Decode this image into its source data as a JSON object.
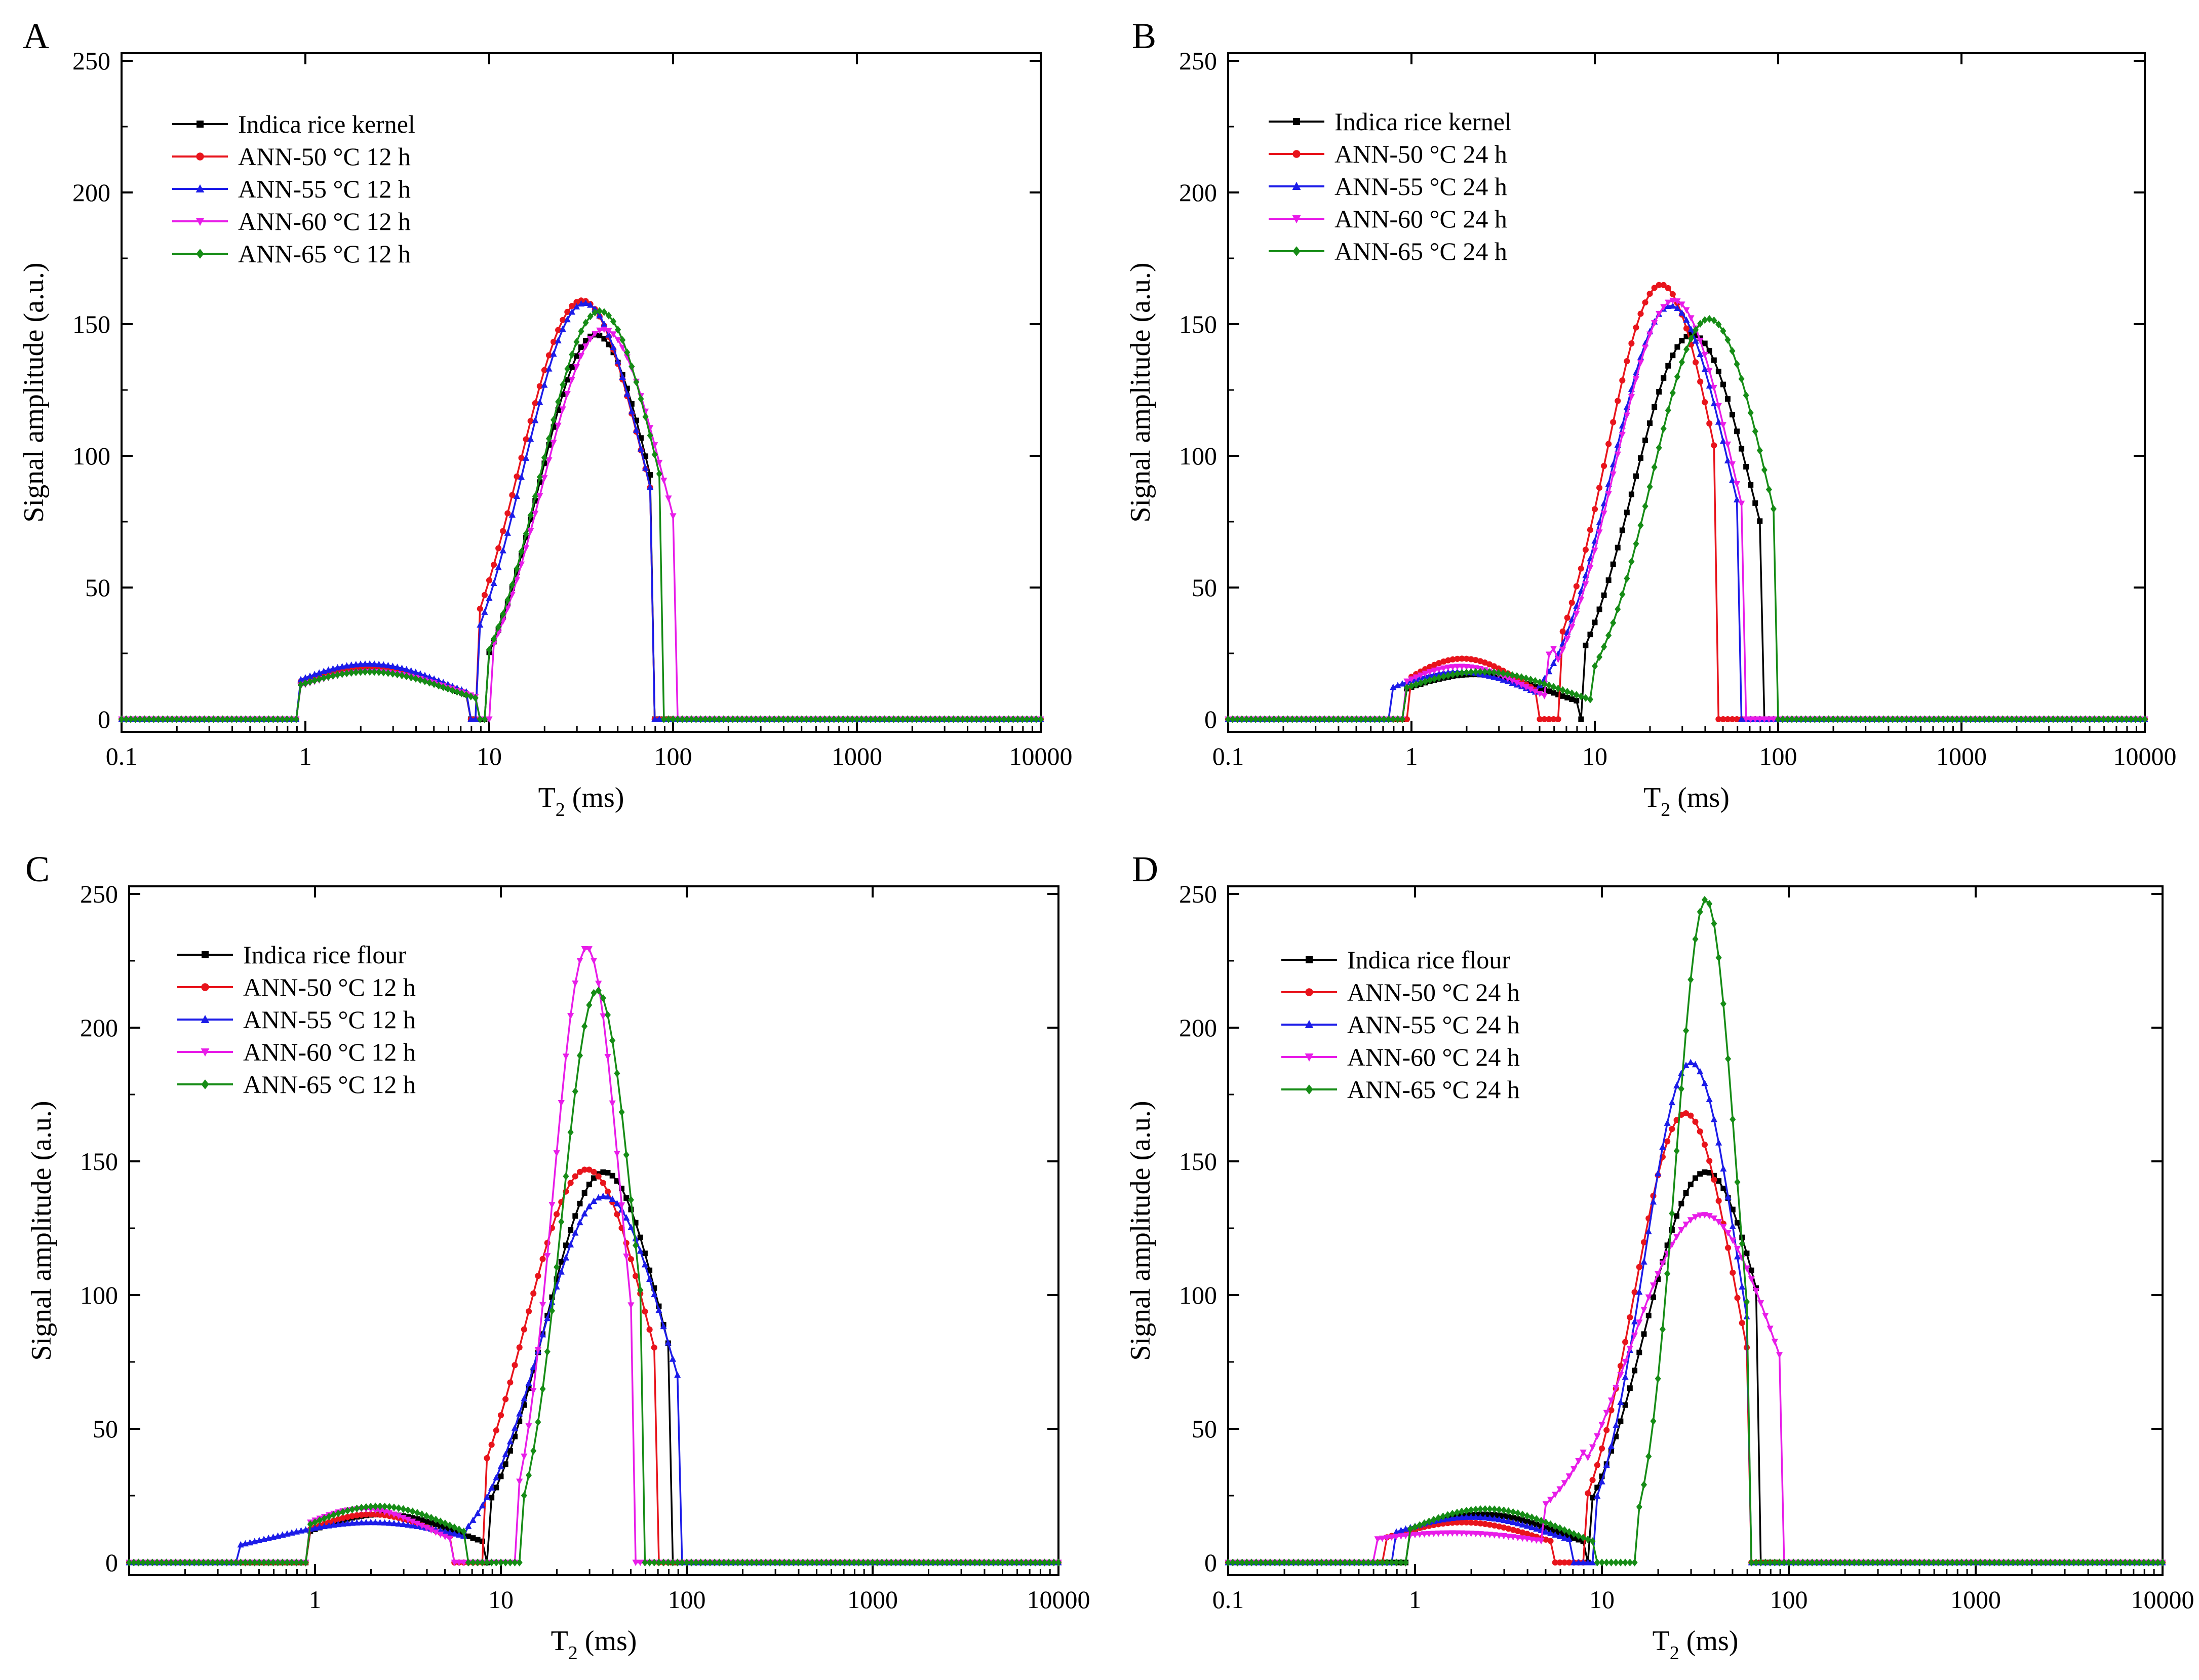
{
  "figure": {
    "panels": [
      "A",
      "B",
      "C",
      "D"
    ]
  },
  "chart_data": [
    {
      "panel": "A",
      "type": "line",
      "xscale": "log",
      "xlim": [
        0.1,
        10000
      ],
      "ylim": [
        0,
        250
      ],
      "xticks": [
        0.1,
        1,
        10,
        100,
        1000,
        10000
      ],
      "xtick_labels": [
        "0.1",
        "1",
        "10",
        "100",
        "1000",
        "10000"
      ],
      "yticks": [
        0,
        50,
        100,
        150,
        200,
        250
      ],
      "ytick_labels": [
        "0",
        "50",
        "100",
        "150",
        "200",
        "250"
      ],
      "xlabel_main": "T",
      "xlabel_sub": "2",
      "xlabel_unit": " (ms)",
      "ylabel": "Signal amplitude (a.u.)",
      "legend_position": "top-left",
      "series": [
        {
          "name": "Indica rice kernel",
          "color": "#000000",
          "marker": "square",
          "peaks": [
            {
              "center": 2.2,
              "amp": 19,
              "width": 0.45,
              "lo": 0.92,
              "hi": 7.8
            },
            {
              "center": 38,
              "amp": 146,
              "width": 0.31,
              "lo": 9.5,
              "hi": 78
            }
          ]
        },
        {
          "name": "ANN-50 °C 12 h",
          "color": "#e8141c",
          "marker": "circle",
          "peaks": [
            {
              "center": 2.2,
              "amp": 20,
              "width": 0.45,
              "lo": 0.92,
              "hi": 7.5
            },
            {
              "center": 32,
              "amp": 159,
              "width": 0.34,
              "lo": 8.5,
              "hi": 75
            }
          ]
        },
        {
          "name": "ANN-55 °C 12 h",
          "color": "#1c1ce8",
          "marker": "triangle-up",
          "peaks": [
            {
              "center": 2.2,
              "amp": 21,
              "width": 0.45,
              "lo": 0.92,
              "hi": 7.5
            },
            {
              "center": 33,
              "amp": 158,
              "width": 0.33,
              "lo": 8.8,
              "hi": 77
            }
          ]
        },
        {
          "name": "ANN-60 °C 12 h",
          "color": "#e81ce8",
          "marker": "triangle-down",
          "peaks": [
            {
              "center": 2.3,
              "amp": 18,
              "width": 0.46,
              "lo": 0.92,
              "hi": 8.5
            },
            {
              "center": 42,
              "amp": 148,
              "width": 0.33,
              "lo": 10.5,
              "hi": 100
            }
          ]
        },
        {
          "name": "ANN-65 °C 12 h",
          "color": "#168c16",
          "marker": "diamond",
          "peaks": [
            {
              "center": 2.2,
              "amp": 18,
              "width": 0.46,
              "lo": 0.92,
              "hi": 8.5
            },
            {
              "center": 40,
              "amp": 155,
              "width": 0.32,
              "lo": 10,
              "hi": 88
            }
          ]
        }
      ]
    },
    {
      "panel": "B",
      "type": "line",
      "xscale": "log",
      "xlim": [
        0.1,
        10000
      ],
      "ylim": [
        0,
        250
      ],
      "xticks": [
        0.1,
        1,
        10,
        100,
        1000,
        10000
      ],
      "xtick_labels": [
        "0.1",
        "1",
        "10",
        "100",
        "1000",
        "10000"
      ],
      "yticks": [
        0,
        50,
        100,
        150,
        200,
        250
      ],
      "ytick_labels": [
        "0",
        "50",
        "100",
        "150",
        "200",
        "250"
      ],
      "xlabel_main": "T",
      "xlabel_sub": "2",
      "xlabel_unit": " (ms)",
      "ylabel": "Signal amplitude (a.u.)",
      "legend_position": "top-left",
      "series": [
        {
          "name": "Indica rice kernel",
          "color": "#000000",
          "marker": "square",
          "peaks": [
            {
              "center": 2.2,
              "amp": 17,
              "width": 0.42,
              "lo": 0.92,
              "hi": 8
            },
            {
              "center": 34,
              "amp": 146,
              "width": 0.32,
              "lo": 8.5,
              "hi": 80
            }
          ]
        },
        {
          "name": "ANN-50 °C 24 h",
          "color": "#e8141c",
          "marker": "circle",
          "peaks": [
            {
              "center": 1.9,
              "amp": 23,
              "width": 0.33,
              "lo": 0.95,
              "hi": 5
            },
            {
              "center": 23,
              "amp": 165,
              "width": 0.3,
              "lo": 6.5,
              "hi": 46
            }
          ]
        },
        {
          "name": "ANN-55 °C 24 h",
          "color": "#1c1ce8",
          "marker": "triangle-up",
          "peaks": [
            {
              "center": 1.8,
              "amp": 18,
              "width": 0.4,
              "lo": 0.78,
              "hi": 5
            },
            {
              "center": 26,
              "amp": 157,
              "width": 0.32,
              "lo": 5,
              "hi": 62
            }
          ]
        },
        {
          "name": "ANN-60 °C 24 h",
          "color": "#e81ce8",
          "marker": "triangle-down",
          "peaks": [
            {
              "center": 1.85,
              "amp": 20,
              "width": 0.36,
              "lo": 0.9,
              "hi": 6
            },
            {
              "center": 27,
              "amp": 159,
              "width": 0.32,
              "lo": 5.5,
              "hi": 66
            }
          ]
        },
        {
          "name": "ANN-65 °C 24 h",
          "color": "#168c16",
          "marker": "diamond",
          "peaks": [
            {
              "center": 2.4,
              "amp": 18,
              "width": 0.45,
              "lo": 0.92,
              "hi": 9.5
            },
            {
              "center": 42,
              "amp": 152,
              "width": 0.31,
              "lo": 10,
              "hi": 95
            }
          ]
        }
      ]
    },
    {
      "panel": "C",
      "type": "line",
      "xscale": "log",
      "xlim": [
        0.1,
        10000
      ],
      "ylim": [
        0,
        250
      ],
      "xticks": [
        1,
        10,
        100,
        1000,
        10000
      ],
      "xtick_labels": [
        "1",
        "10",
        "100",
        "1000",
        "10000"
      ],
      "yticks": [
        0,
        50,
        100,
        150,
        200,
        250
      ],
      "ytick_labels": [
        "0",
        "50",
        "100",
        "150",
        "200",
        "250"
      ],
      "xlabel_main": "T",
      "xlabel_sub": "2",
      "xlabel_unit": " (ms)",
      "ylabel": "Signal amplitude (a.u.)",
      "legend_position": "top-left",
      "series": [
        {
          "name": "Indica rice flour",
          "color": "#000000",
          "marker": "square",
          "peaks": [
            {
              "center": 2.3,
              "amp": 18,
              "width": 0.42,
              "lo": 0.92,
              "hi": 8
            },
            {
              "center": 36,
              "amp": 146,
              "width": 0.32,
              "lo": 8.5,
              "hi": 80
            }
          ]
        },
        {
          "name": "ANN-50 °C 12 h",
          "color": "#e8141c",
          "marker": "circle",
          "peaks": [
            {
              "center": 2.0,
              "amp": 18,
              "width": 0.38,
              "lo": 0.92,
              "hi": 5.5
            },
            {
              "center": 29,
              "amp": 147,
              "width": 0.33,
              "lo": 8,
              "hi": 68
            }
          ]
        },
        {
          "name": "ANN-55 °C 12 h",
          "color": "#1c1ce8",
          "marker": "triangle-up",
          "peaks": [
            {
              "center": 2.0,
              "amp": 15,
              "width": 0.55,
              "lo": 0.38,
              "hi": 6.5
            },
            {
              "center": 36,
              "amp": 137,
              "width": 0.34,
              "lo": 6.5,
              "hi": 92
            }
          ]
        },
        {
          "name": "ANN-60 °C 12 h",
          "color": "#e81ce8",
          "marker": "triangle-down",
          "peaks": [
            {
              "center": 1.8,
              "amp": 20,
              "width": 0.37,
              "lo": 0.92,
              "hi": 5.5
            },
            {
              "center": 29,
              "amp": 230,
              "width": 0.18,
              "lo": 12,
              "hi": 52
            }
          ]
        },
        {
          "name": "ANN-65 °C 12 h",
          "color": "#168c16",
          "marker": "diamond",
          "peaks": [
            {
              "center": 2.2,
              "amp": 21,
              "width": 0.42,
              "lo": 0.92,
              "hi": 6.5
            },
            {
              "center": 33,
              "amp": 214,
              "width": 0.19,
              "lo": 13,
              "hi": 58
            }
          ]
        }
      ]
    },
    {
      "panel": "D",
      "type": "line",
      "xscale": "log",
      "xlim": [
        0.1,
        10000
      ],
      "ylim": [
        0,
        250
      ],
      "xticks": [
        0.1,
        1,
        10,
        100,
        1000,
        10000
      ],
      "xtick_labels": [
        "0.1",
        "1",
        "10",
        "100",
        "1000",
        "10000"
      ],
      "yticks": [
        0,
        50,
        100,
        150,
        200,
        250
      ],
      "ytick_labels": [
        "0",
        "50",
        "100",
        "150",
        "200",
        "250"
      ],
      "xlabel_main": "T",
      "xlabel_sub": "2",
      "xlabel_unit": " (ms)",
      "ylabel": "Signal amplitude (a.u.)",
      "legend_position": "top-left",
      "series": [
        {
          "name": "Indica rice flour",
          "color": "#000000",
          "marker": "square",
          "peaks": [
            {
              "center": 2.3,
              "amp": 18,
              "width": 0.42,
              "lo": 0.92,
              "hi": 8
            },
            {
              "center": 36,
              "amp": 146,
              "width": 0.32,
              "lo": 8.5,
              "hi": 70
            }
          ]
        },
        {
          "name": "ANN-50 °C 24 h",
          "color": "#e8141c",
          "marker": "circle",
          "peaks": [
            {
              "center": 1.8,
              "amp": 15,
              "width": 0.42,
              "lo": 0.7,
              "hi": 5.5
            },
            {
              "center": 28,
              "amp": 168,
              "width": 0.27,
              "lo": 8,
              "hi": 60
            }
          ]
        },
        {
          "name": "ANN-55 °C 24 h",
          "color": "#1c1ce8",
          "marker": "triangle-up",
          "peaks": [
            {
              "center": 2.0,
              "amp": 17,
              "width": 0.45,
              "lo": 0.75,
              "hi": 7
            },
            {
              "center": 30,
              "amp": 187,
              "width": 0.25,
              "lo": 9,
              "hi": 60
            }
          ]
        },
        {
          "name": "ANN-60 °C 24 h",
          "color": "#e81ce8",
          "marker": "triangle-down",
          "peaks": [
            {
              "center": 1.6,
              "amp": 11,
              "width": 0.6,
              "lo": 0.6,
              "hi": 8
            },
            {
              "center": 35,
              "amp": 130,
              "width": 0.4,
              "lo": 5,
              "hi": 92
            }
          ]
        },
        {
          "name": "ANN-65 °C 24 h",
          "color": "#168c16",
          "marker": "diamond",
          "peaks": [
            {
              "center": 2.4,
              "amp": 20,
              "width": 0.42,
              "lo": 0.92,
              "hi": 9
            },
            {
              "center": 36,
              "amp": 248,
              "width": 0.16,
              "lo": 15,
              "hi": 62
            }
          ]
        }
      ]
    }
  ]
}
